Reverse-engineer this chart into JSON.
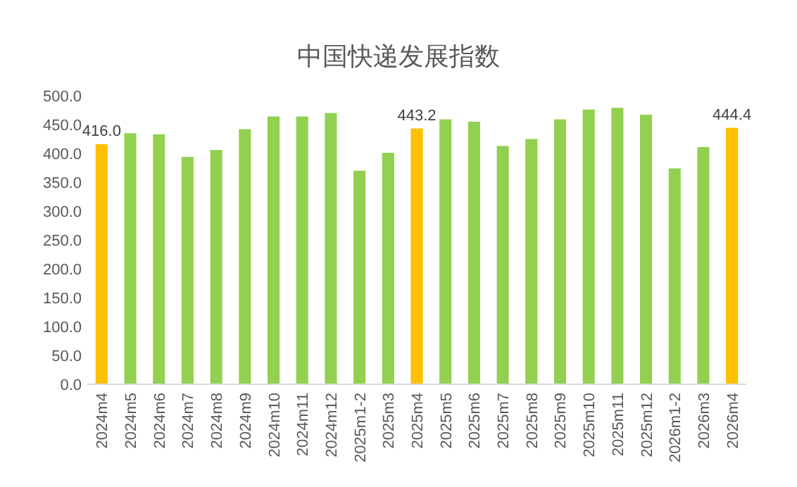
{
  "chart_data": {
    "type": "bar",
    "title": "中国快递发展指数",
    "categories": [
      "2024m4",
      "2024m5",
      "2024m6",
      "2024m7",
      "2024m8",
      "2024m9",
      "2024m10",
      "2024m11",
      "2024m12",
      "2025m1-2",
      "2025m3",
      "2025m4",
      "2025m5",
      "2025m6",
      "2025m7",
      "2025m8",
      "2025m9",
      "2025m10",
      "2025m11",
      "2025m12",
      "2026m1-2",
      "2026m3",
      "2026m4"
    ],
    "values": [
      416.0,
      435,
      433,
      394,
      406,
      442,
      464,
      464,
      470,
      370,
      401,
      443.2,
      459,
      455,
      413,
      425,
      459,
      476,
      479,
      467,
      374,
      411,
      444.4
    ],
    "colors": [
      "#ffc000",
      "#92d050",
      "#92d050",
      "#92d050",
      "#92d050",
      "#92d050",
      "#92d050",
      "#92d050",
      "#92d050",
      "#92d050",
      "#92d050",
      "#ffc000",
      "#92d050",
      "#92d050",
      "#92d050",
      "#92d050",
      "#92d050",
      "#92d050",
      "#92d050",
      "#92d050",
      "#92d050",
      "#92d050",
      "#ffc000"
    ],
    "value_labels": [
      "416.0",
      null,
      null,
      null,
      null,
      null,
      null,
      null,
      null,
      null,
      null,
      "443.2",
      null,
      null,
      null,
      null,
      null,
      null,
      null,
      null,
      null,
      null,
      "444.4"
    ],
    "ylim": [
      0,
      500
    ],
    "yticks": [
      {
        "value": 0,
        "label": "0.0"
      },
      {
        "value": 50,
        "label": "50.0"
      },
      {
        "value": 100,
        "label": "100.0"
      },
      {
        "value": 150,
        "label": "150.0"
      },
      {
        "value": 200,
        "label": "200.0"
      },
      {
        "value": 250,
        "label": "250.0"
      },
      {
        "value": 300,
        "label": "300.0"
      },
      {
        "value": 350,
        "label": "350.0"
      },
      {
        "value": 400,
        "label": "400.0"
      },
      {
        "value": 450,
        "label": "450.0"
      },
      {
        "value": 500,
        "label": "500.0"
      }
    ],
    "grid": false
  }
}
